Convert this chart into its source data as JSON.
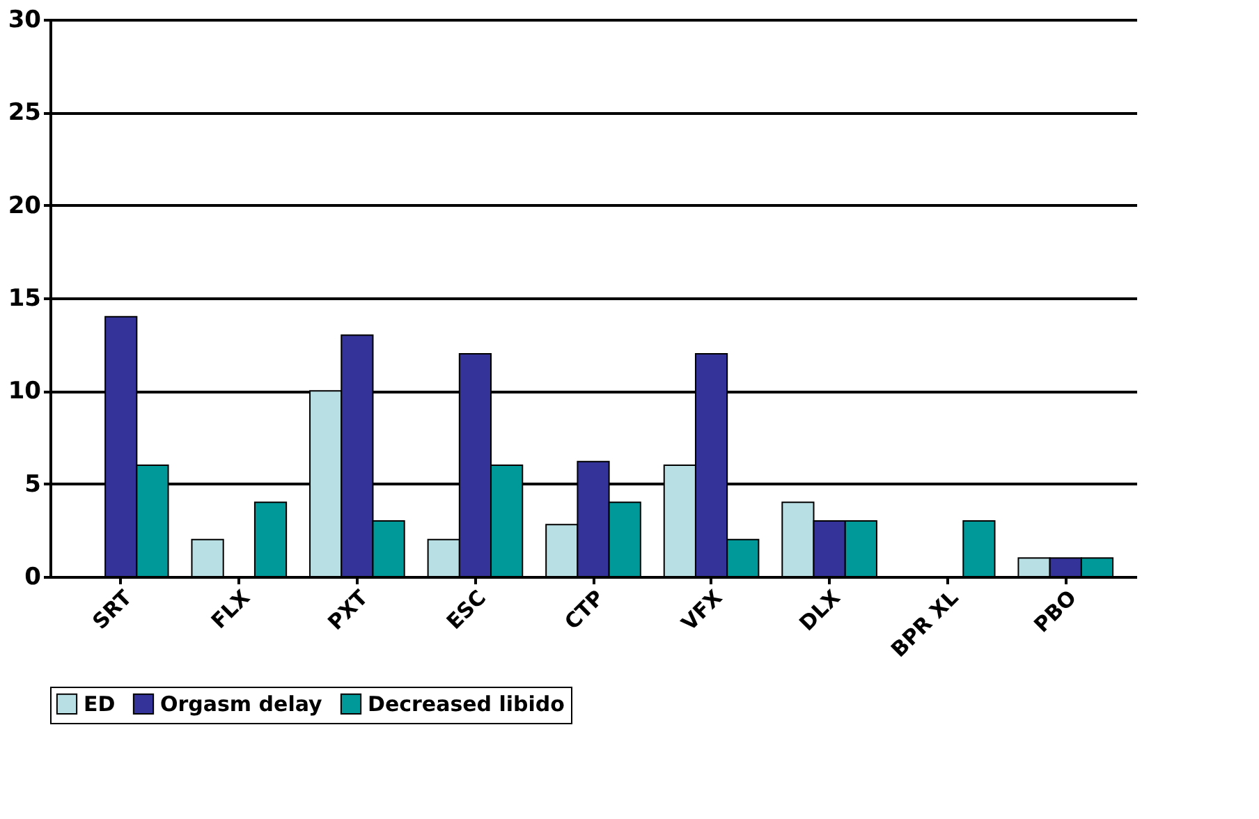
{
  "chart_data": {
    "type": "bar",
    "categories": [
      "SRT",
      "FLX",
      "PXT",
      "ESC",
      "CTP",
      "VFX",
      "DLX",
      "BPR XL",
      "PBO"
    ],
    "series": [
      {
        "name": "ED",
        "color": "#b8e0e4",
        "values": [
          0,
          2,
          10,
          2,
          2.8,
          6,
          4,
          0,
          1
        ]
      },
      {
        "name": "Orgasm delay",
        "color": "#333399",
        "values": [
          14,
          0,
          13,
          12,
          6.2,
          12,
          3,
          0,
          1
        ]
      },
      {
        "name": "Decreased libido",
        "color": "#009999",
        "values": [
          6,
          4,
          3,
          6,
          4,
          2,
          3,
          3,
          1
        ]
      }
    ],
    "ylim": [
      0,
      30
    ],
    "yticks": [
      0,
      5,
      10,
      15,
      20,
      25,
      30
    ],
    "grid": "y",
    "legend": "bottom"
  }
}
